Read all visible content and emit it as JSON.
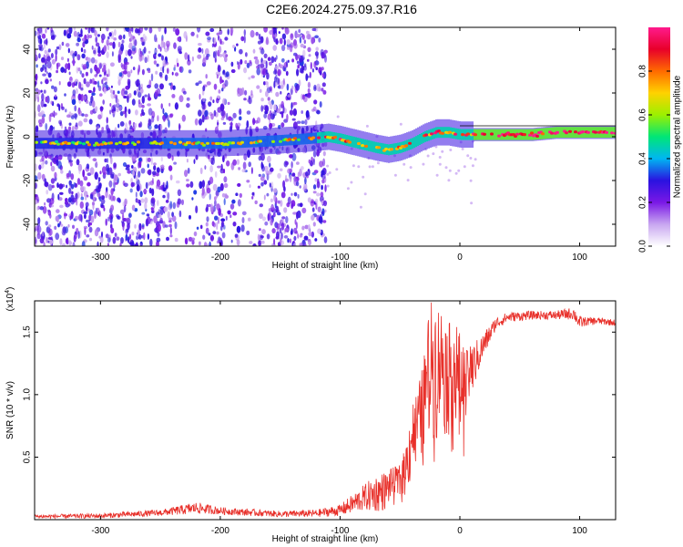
{
  "title": "C2E6.2024.275.09.37.R16",
  "chart_data": [
    {
      "type": "heatmap",
      "xlabel": "Height of straight line (km)",
      "ylabel": "Frequency (Hz)",
      "xlim": [
        -355,
        130
      ],
      "ylim": [
        -50,
        50
      ],
      "xticks": [
        -300,
        -200,
        -100,
        0,
        100
      ],
      "yticks": [
        -40,
        -20,
        0,
        20,
        40
      ],
      "colorbar": {
        "label": "Normalized spectral amplitude",
        "range": [
          0,
          1
        ],
        "ticks": [
          0.0,
          0.2,
          0.4,
          0.6,
          0.8
        ],
        "colormap": [
          "#ffffff",
          "#c8a6f0",
          "#7a18e6",
          "#2a12e0",
          "#00b6f2",
          "#00e676",
          "#9cf000",
          "#ffd200",
          "#ff6a00",
          "#e8002a",
          "#ff1a8c"
        ]
      },
      "ridge": {
        "x": [
          -355,
          -300,
          -250,
          -200,
          -160,
          -130,
          -110,
          -100,
          -85,
          -70,
          -60,
          -50,
          -40,
          -30,
          -20,
          -10,
          0,
          20,
          40,
          60,
          80,
          100,
          130
        ],
        "y": [
          -3,
          -3,
          -3,
          -3,
          -2,
          -1,
          0,
          -1,
          -3,
          -5,
          -6,
          -5,
          -3,
          0,
          2,
          2,
          1,
          1,
          1,
          1,
          2,
          2,
          2
        ]
      },
      "noise_cutoff_x": -112
    },
    {
      "type": "line",
      "xlabel": "Height of straight line (km)",
      "ylabel": "SNR (10 * v/v)",
      "yunit_label": "(x10",
      "yunit_exp": "4",
      "xlim": [
        -355,
        130
      ],
      "ylim": [
        0.0,
        1.75
      ],
      "xticks": [
        -300,
        -200,
        -100,
        0,
        100
      ],
      "yticks": [
        0.5,
        1.0,
        1.5
      ],
      "ytick_labels": [
        "0.5",
        "1.0",
        "1.5"
      ],
      "series_color": "#e8302a",
      "envelope": {
        "x": [
          -355,
          -300,
          -250,
          -230,
          -220,
          -200,
          -150,
          -120,
          -100,
          -90,
          -80,
          -70,
          -60,
          -50,
          -45,
          -40,
          -35,
          -30,
          -25,
          -20,
          -15,
          -10,
          -5,
          0,
          5,
          10,
          20,
          30,
          40,
          60,
          80,
          95,
          100,
          105,
          115,
          130
        ],
        "lo": [
          0.01,
          0.01,
          0.03,
          0.04,
          0.05,
          0.04,
          0.02,
          0.02,
          0.03,
          0.05,
          0.07,
          0.06,
          0.08,
          0.1,
          0.15,
          0.2,
          0.25,
          0.35,
          0.4,
          0.45,
          0.55,
          0.6,
          0.4,
          0.3,
          0.6,
          1.0,
          1.3,
          1.52,
          1.58,
          1.6,
          1.6,
          1.6,
          1.52,
          1.55,
          1.56,
          1.55
        ],
        "hi": [
          0.04,
          0.05,
          0.08,
          0.12,
          0.14,
          0.1,
          0.07,
          0.08,
          0.12,
          0.2,
          0.28,
          0.36,
          0.4,
          0.44,
          0.6,
          0.95,
          1.05,
          1.3,
          1.75,
          1.75,
          1.7,
          1.55,
          1.65,
          1.5,
          1.35,
          1.4,
          1.5,
          1.62,
          1.66,
          1.67,
          1.67,
          1.7,
          1.63,
          1.62,
          1.62,
          1.6
        ]
      }
    }
  ]
}
